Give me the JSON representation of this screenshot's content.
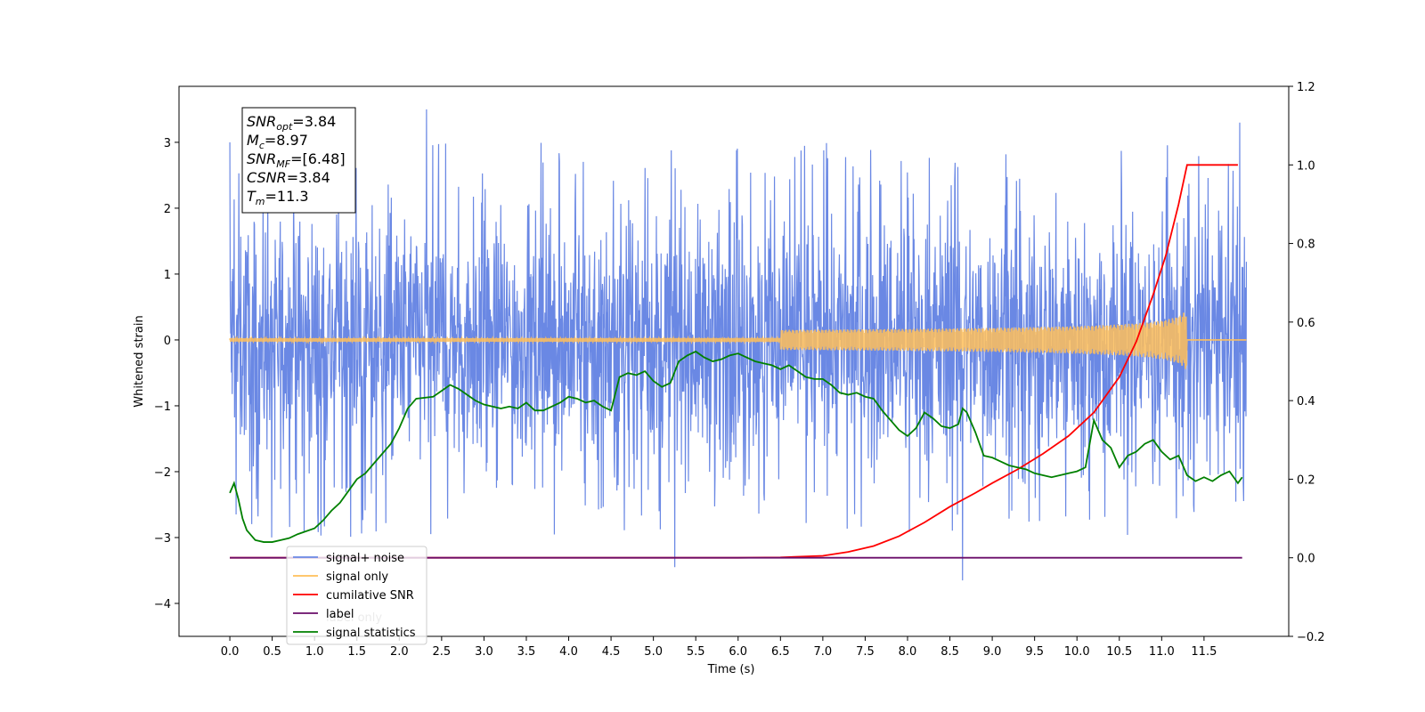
{
  "chart_data": {
    "type": "line",
    "xlabel": "Time (s)",
    "ylabel": "Whitened strain",
    "xlim": [
      -0.6,
      12.5
    ],
    "ylim": [
      -4.5,
      3.85
    ],
    "y2lim": [
      -0.2,
      1.2
    ],
    "x_ticks": [
      0.0,
      0.5,
      1.0,
      1.5,
      2.0,
      2.5,
      3.0,
      3.5,
      4.0,
      4.5,
      5.0,
      5.5,
      6.0,
      6.5,
      7.0,
      7.5,
      8.0,
      8.5,
      9.0,
      9.5,
      10.0,
      10.5,
      11.0,
      11.5
    ],
    "x_tick_labels": [
      "0.0",
      "0.5",
      "1.0",
      "1.5",
      "2.0",
      "2.5",
      "3.0",
      "3.5",
      "4.0",
      "4.5",
      "5.0",
      "5.5",
      "6.0",
      "6.5",
      "7.0",
      "7.5",
      "8.0",
      "8.5",
      "9.0",
      "9.5",
      "10.0",
      "10.5",
      "11.0",
      "11.5"
    ],
    "y_ticks": [
      -4,
      -3,
      -2,
      -1,
      0,
      1,
      2,
      3
    ],
    "y_tick_labels": [
      "−4",
      "−3",
      "−2",
      "−1",
      "0",
      "1",
      "2",
      "3"
    ],
    "y2_ticks": [
      -0.2,
      0.0,
      0.2,
      0.4,
      0.6,
      0.8,
      1.0,
      1.2
    ],
    "y2_tick_labels": [
      "−0.2",
      "0.0",
      "0.2",
      "0.4",
      "0.6",
      "0.8",
      "1.0",
      "1.2"
    ],
    "grid": false,
    "legend_position": "lower-left",
    "series": [
      {
        "name": "signal+ noise",
        "color": "#6a88e4",
        "axis": "left",
        "kind": "noise",
        "x_range": [
          0.0,
          12.0
        ],
        "envelope_upper": 2.0,
        "envelope_lower": -2.0,
        "spike_x": [
          0.0,
          2.32,
          5.25,
          8.65,
          11.92
        ],
        "spike_y": [
          3.0,
          3.5,
          -3.45,
          -3.65,
          3.3
        ]
      },
      {
        "name": "signal only",
        "color": "#ffbf5a",
        "axis": "left",
        "kind": "chirp",
        "x_range": [
          0.0,
          12.0
        ],
        "merger_time": 11.3,
        "peak_amplitude": 0.48
      },
      {
        "name": "cumilative SNR",
        "color": "#ff0000",
        "axis": "right",
        "x": [
          0.0,
          6.0,
          6.5,
          7.0,
          7.3,
          7.6,
          7.9,
          8.2,
          8.5,
          8.8,
          9.0,
          9.3,
          9.6,
          9.9,
          10.2,
          10.5,
          10.7,
          10.9,
          11.05,
          11.2,
          11.3,
          11.9
        ],
        "y": [
          0.0,
          0.0,
          0.001,
          0.005,
          0.015,
          0.03,
          0.055,
          0.09,
          0.13,
          0.165,
          0.19,
          0.225,
          0.265,
          0.31,
          0.37,
          0.46,
          0.55,
          0.67,
          0.77,
          0.9,
          1.0,
          1.0
        ]
      },
      {
        "name": "label",
        "color": "#6a0d6a",
        "axis": "right",
        "x": [
          0.0,
          11.95
        ],
        "y": [
          0.0,
          0.0
        ]
      },
      {
        "name": "signal statistics",
        "color": "#008000",
        "axis": "right",
        "x": [
          0.0,
          0.05,
          0.1,
          0.15,
          0.2,
          0.3,
          0.4,
          0.5,
          0.6,
          0.7,
          0.8,
          1.0,
          1.1,
          1.2,
          1.3,
          1.4,
          1.5,
          1.6,
          1.7,
          1.8,
          1.9,
          2.0,
          2.1,
          2.2,
          2.4,
          2.5,
          2.6,
          2.7,
          2.8,
          2.9,
          3.0,
          3.1,
          3.2,
          3.3,
          3.4,
          3.5,
          3.6,
          3.7,
          3.8,
          3.9,
          4.0,
          4.1,
          4.2,
          4.3,
          4.4,
          4.5,
          4.6,
          4.7,
          4.8,
          4.9,
          5.0,
          5.1,
          5.2,
          5.3,
          5.4,
          5.5,
          5.6,
          5.7,
          5.8,
          5.9,
          6.0,
          6.1,
          6.2,
          6.3,
          6.4,
          6.5,
          6.6,
          6.7,
          6.8,
          6.9,
          7.0,
          7.1,
          7.2,
          7.3,
          7.4,
          7.5,
          7.6,
          7.7,
          7.8,
          7.9,
          8.0,
          8.1,
          8.2,
          8.3,
          8.4,
          8.5,
          8.6,
          8.65,
          8.7,
          8.8,
          8.9,
          9.0,
          9.1,
          9.2,
          9.3,
          9.4,
          9.5,
          9.6,
          9.7,
          9.8,
          9.9,
          10.0,
          10.1,
          10.2,
          10.3,
          10.4,
          10.5,
          10.6,
          10.7,
          10.8,
          10.9,
          11.0,
          11.1,
          11.2,
          11.3,
          11.4,
          11.5,
          11.6,
          11.7,
          11.8,
          11.9,
          11.95
        ],
        "y": [
          0.165,
          0.19,
          0.15,
          0.1,
          0.07,
          0.045,
          0.04,
          0.04,
          0.045,
          0.05,
          0.06,
          0.075,
          0.095,
          0.12,
          0.14,
          0.17,
          0.2,
          0.215,
          0.24,
          0.265,
          0.29,
          0.33,
          0.38,
          0.405,
          0.41,
          0.425,
          0.44,
          0.43,
          0.415,
          0.4,
          0.39,
          0.385,
          0.38,
          0.385,
          0.38,
          0.395,
          0.375,
          0.375,
          0.385,
          0.395,
          0.41,
          0.405,
          0.395,
          0.4,
          0.385,
          0.375,
          0.46,
          0.47,
          0.465,
          0.475,
          0.45,
          0.435,
          0.445,
          0.5,
          0.515,
          0.525,
          0.51,
          0.5,
          0.505,
          0.515,
          0.52,
          0.51,
          0.5,
          0.495,
          0.49,
          0.48,
          0.49,
          0.475,
          0.46,
          0.455,
          0.455,
          0.44,
          0.42,
          0.415,
          0.42,
          0.41,
          0.405,
          0.375,
          0.35,
          0.325,
          0.31,
          0.33,
          0.37,
          0.355,
          0.335,
          0.33,
          0.34,
          0.38,
          0.37,
          0.32,
          0.26,
          0.255,
          0.245,
          0.235,
          0.23,
          0.225,
          0.215,
          0.21,
          0.205,
          0.21,
          0.215,
          0.22,
          0.23,
          0.35,
          0.3,
          0.28,
          0.23,
          0.26,
          0.27,
          0.29,
          0.3,
          0.27,
          0.25,
          0.26,
          0.21,
          0.195,
          0.205,
          0.195,
          0.21,
          0.22,
          0.19,
          0.205
        ]
      }
    ],
    "legend": [
      "signal+ noise",
      "signal only",
      "cumilative SNR",
      "label",
      "signal statistics"
    ],
    "legend_overlap_text": "label only",
    "annotation_lines": [
      {
        "sym": "SNR",
        "sub": "opt",
        "rest": "=3.84"
      },
      {
        "sym": "M",
        "sub": "c",
        "rest": "=8.97"
      },
      {
        "sym": "SNR",
        "sub": "MF",
        "rest": "=[6.48]"
      },
      {
        "sym": "CSNR",
        "sub": "",
        "rest": "=3.84"
      },
      {
        "sym": "T",
        "sub": "m",
        "rest": "=11.3"
      }
    ]
  }
}
